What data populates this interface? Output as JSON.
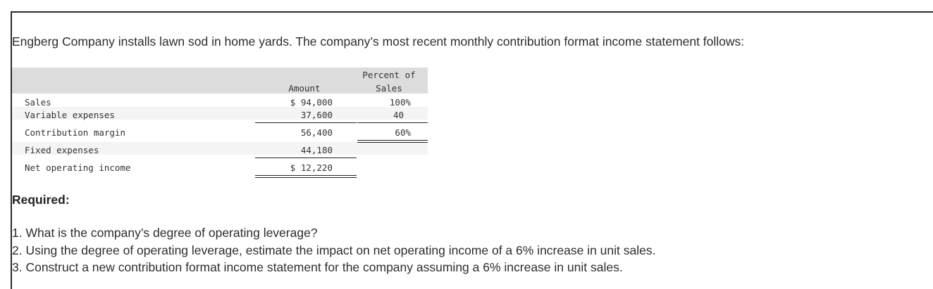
{
  "intro_text": "Engberg Company installs lawn sod in home yards. The company’s most recent monthly contribution format income statement follows:",
  "statement": {
    "header": {
      "amount": "Amount",
      "percent_line1": "Percent of",
      "percent_line2": "Sales"
    },
    "rows": [
      {
        "label": "Sales",
        "amount": "$ 94,000",
        "percent": "100%"
      },
      {
        "label": "Variable expenses",
        "amount": "37,600",
        "percent": "40"
      },
      {
        "label": "Contribution margin",
        "amount": "56,400",
        "percent": "60%"
      },
      {
        "label": "Fixed expenses",
        "amount": "44,180",
        "percent": ""
      },
      {
        "label": "Net operating income",
        "amount": "$ 12,220",
        "percent": ""
      }
    ]
  },
  "required": {
    "heading": "Required:",
    "items": [
      "1. What is the company’s degree of operating leverage?",
      "2. Using the degree of operating leverage, estimate the impact on net operating income of a 6% increase in unit sales.",
      "3. Construct a new contribution format income statement for the company assuming a 6% increase in unit sales."
    ]
  }
}
